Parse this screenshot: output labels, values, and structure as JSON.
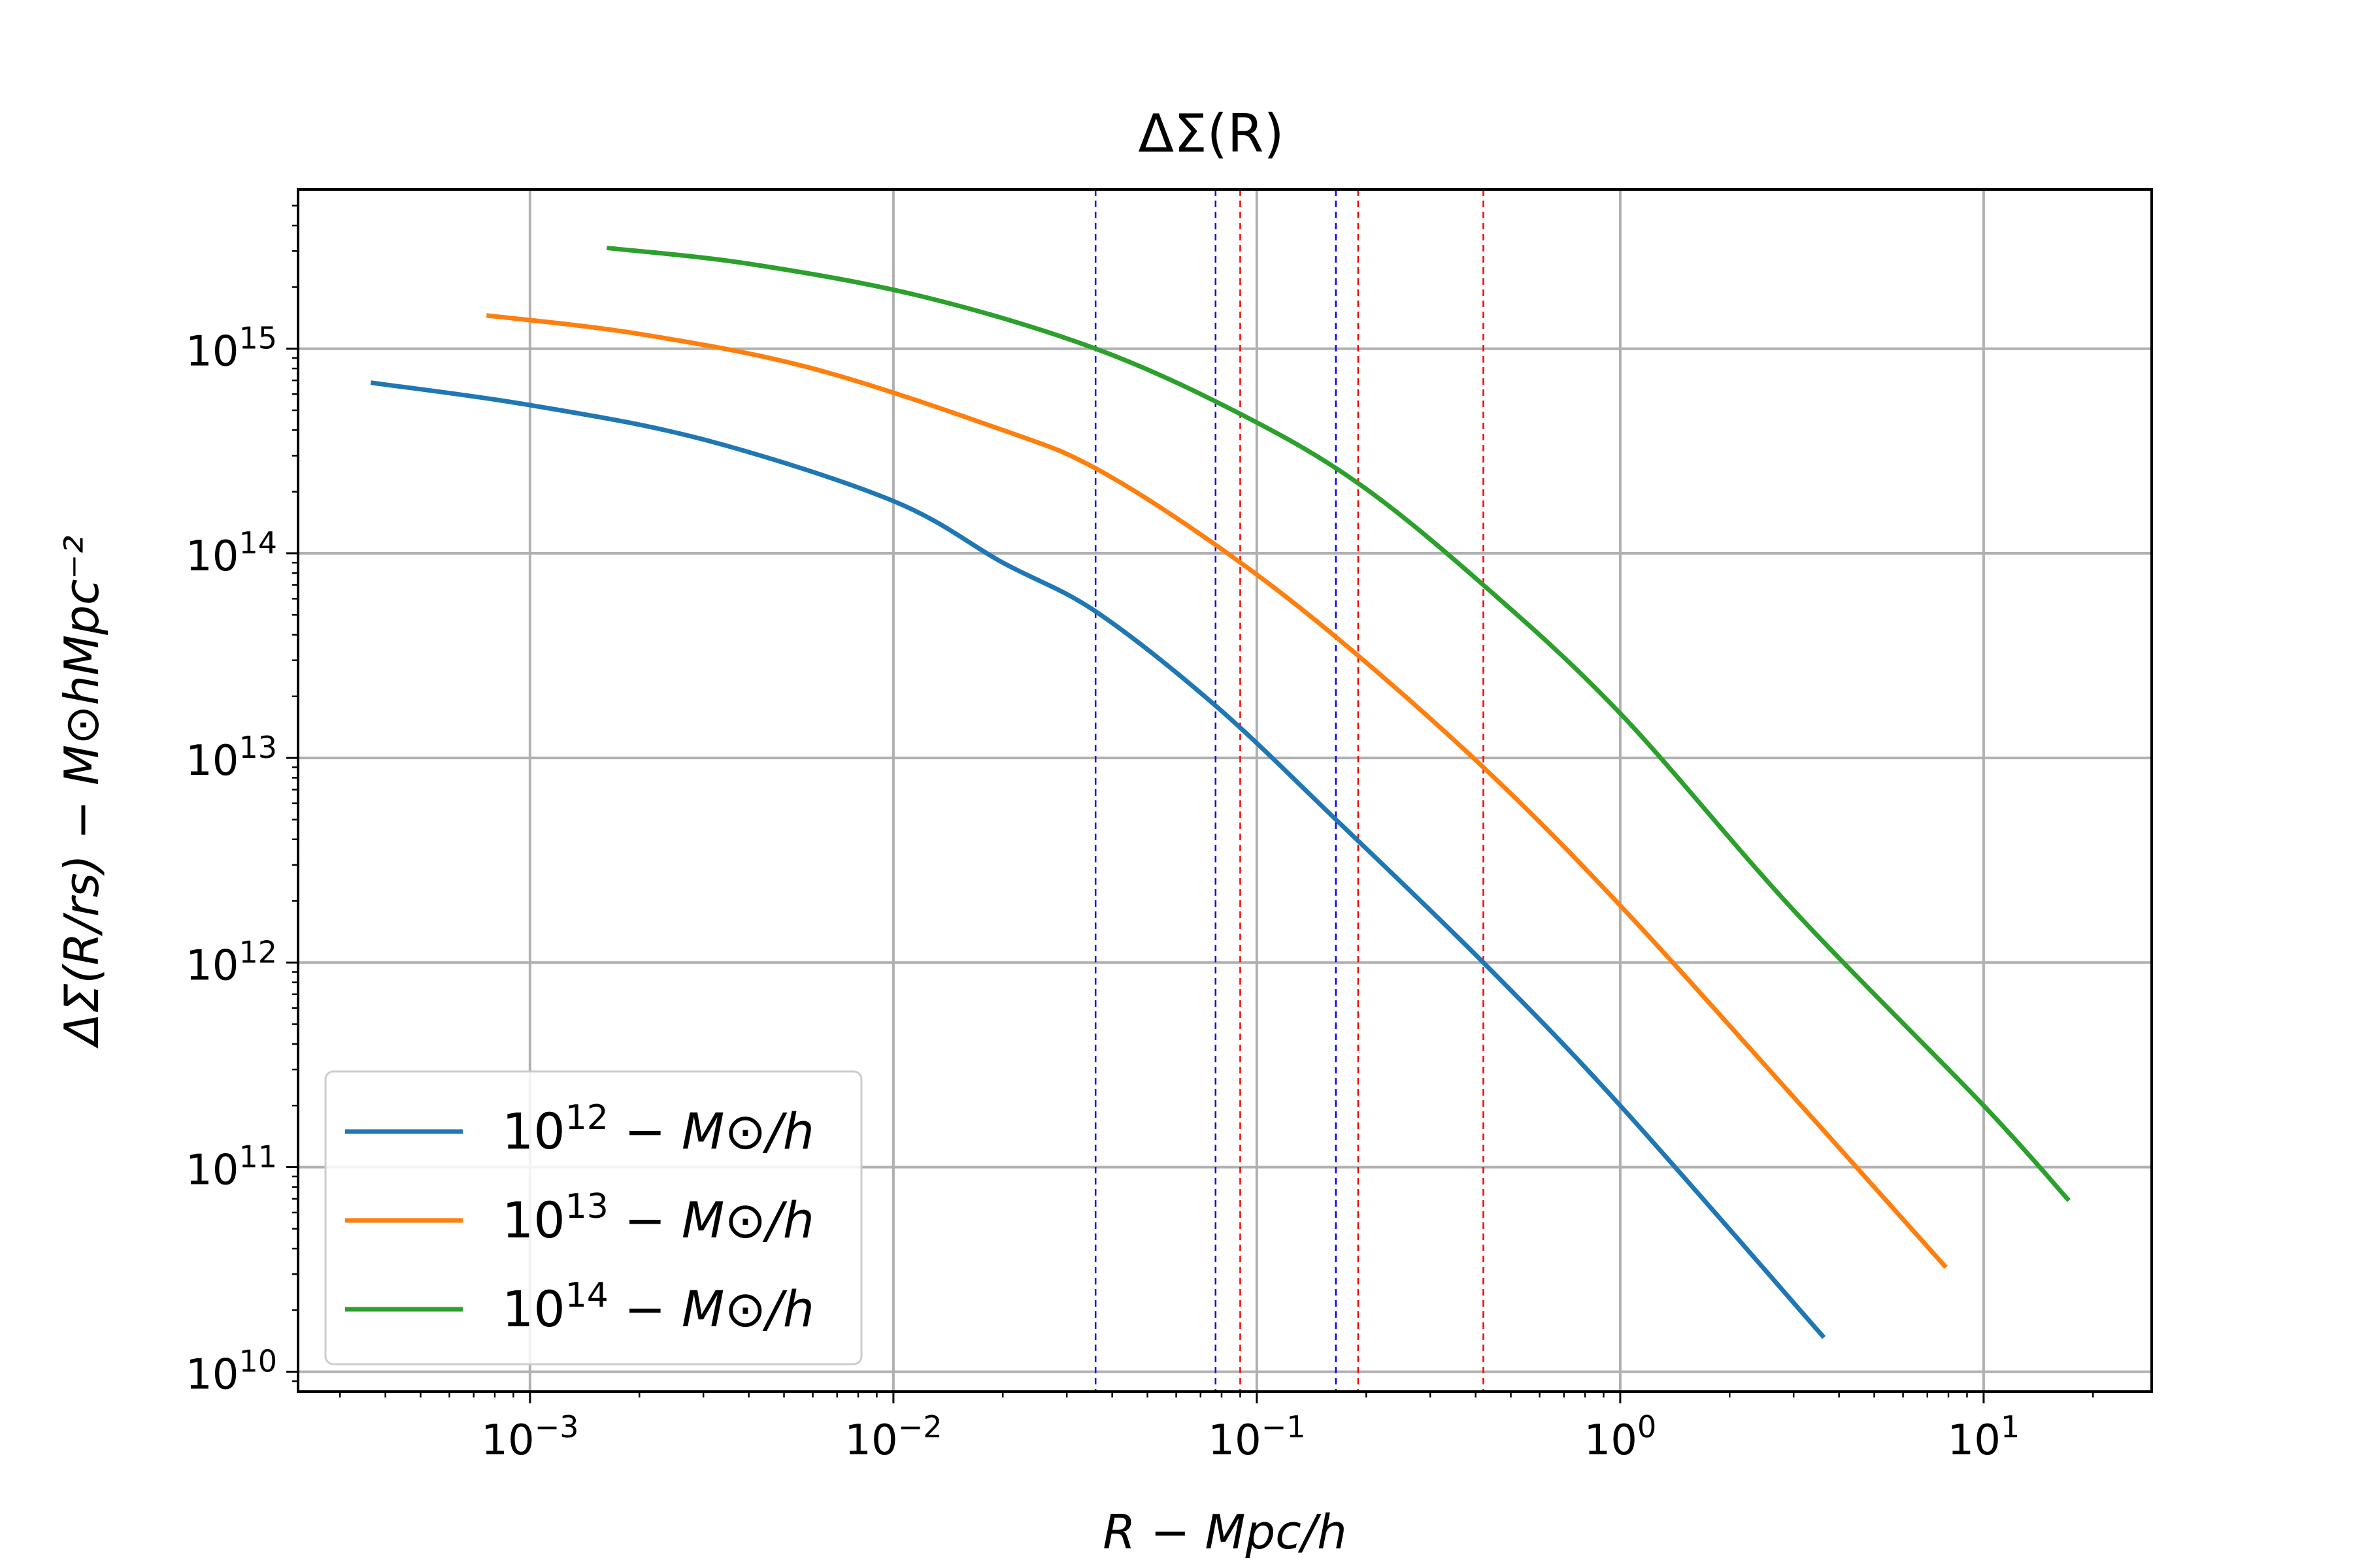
{
  "chart_data": {
    "type": "line",
    "title": "ΔΣ(R)",
    "xlabel": "R − Mpc/h",
    "ylabel": "ΔΣ(R/rs) − M⊙hMpc⁻²",
    "xscale": "log",
    "yscale": "log",
    "xlim": [
      0.00023,
      29
    ],
    "ylim": [
      8000000000.0,
      6000000000000000.0
    ],
    "grid": true,
    "legend_position": "lower-left",
    "x_ticks": [
      {
        "value": 0.001,
        "base": "10",
        "exp": "−3"
      },
      {
        "value": 0.01,
        "base": "10",
        "exp": "−2"
      },
      {
        "value": 0.1,
        "base": "10",
        "exp": "−1"
      },
      {
        "value": 1,
        "base": "10",
        "exp": "0"
      },
      {
        "value": 10,
        "base": "10",
        "exp": "1"
      }
    ],
    "y_ticks": [
      {
        "value": 10000000000.0,
        "base": "10",
        "exp": "10"
      },
      {
        "value": 100000000000.0,
        "base": "10",
        "exp": "11"
      },
      {
        "value": 1000000000000.0,
        "base": "10",
        "exp": "12"
      },
      {
        "value": 10000000000000.0,
        "base": "10",
        "exp": "13"
      },
      {
        "value": 100000000000000.0,
        "base": "10",
        "exp": "14"
      },
      {
        "value": 1000000000000000.0,
        "base": "10",
        "exp": "15"
      }
    ],
    "series": [
      {
        "name": "10^12 − M⊙/h",
        "legend": {
          "base": "10",
          "exp": "12",
          "rest": " − M⊙/h"
        },
        "color": "#1f77b4",
        "x": [
          0.00037,
          0.001,
          0.003,
          0.01,
          0.02,
          0.036,
          0.077,
          0.165,
          0.42,
          1.0,
          3.6
        ],
        "y": [
          680000000000000.0,
          530000000000000.0,
          360000000000000.0,
          180000000000000.0,
          90000000000000.0,
          52000000000000.0,
          18000000000000.0,
          5000000000000.0,
          1000000000000.0,
          200000000000.0,
          15000000000.0
        ]
      },
      {
        "name": "10^13 − M⊙/h",
        "legend": {
          "base": "10",
          "exp": "13",
          "rest": " − M⊙/h"
        },
        "color": "#ff7f0e",
        "x": [
          0.00077,
          0.002,
          0.006,
          0.02,
          0.036,
          0.077,
          0.165,
          0.42,
          1.0,
          3.0,
          7.8
        ],
        "y": [
          1450000000000000.0,
          1180000000000000.0,
          800000000000000.0,
          400000000000000.0,
          260000000000000.0,
          110000000000000.0,
          39000000000000.0,
          9000000000000.0,
          1900000000000.0,
          220000000000.0,
          33000000000.0
        ]
      },
      {
        "name": "10^14 − M⊙/h",
        "legend": {
          "base": "10",
          "exp": "14",
          "rest": " − M⊙/h"
        },
        "color": "#2ca02c",
        "x": [
          0.00165,
          0.004,
          0.012,
          0.036,
          0.09,
          0.19,
          0.42,
          1.0,
          3.0,
          10,
          17
        ],
        "y": [
          3100000000000000.0,
          2600000000000000.0,
          1800000000000000.0,
          1000000000000000.0,
          480000000000000.0,
          220000000000000.0,
          70000000000000.0,
          16500000000000.0,
          1800000000000.0,
          200000000000.0,
          70000000000.0
        ]
      }
    ],
    "vlines": [
      {
        "x": 0.036,
        "color": "#0000ff"
      },
      {
        "x": 0.077,
        "color": "#0000ff"
      },
      {
        "x": 0.165,
        "color": "#0000ff"
      },
      {
        "x": 0.09,
        "color": "#ff0000"
      },
      {
        "x": 0.19,
        "color": "#ff0000"
      },
      {
        "x": 0.42,
        "color": "#ff0000"
      }
    ]
  }
}
